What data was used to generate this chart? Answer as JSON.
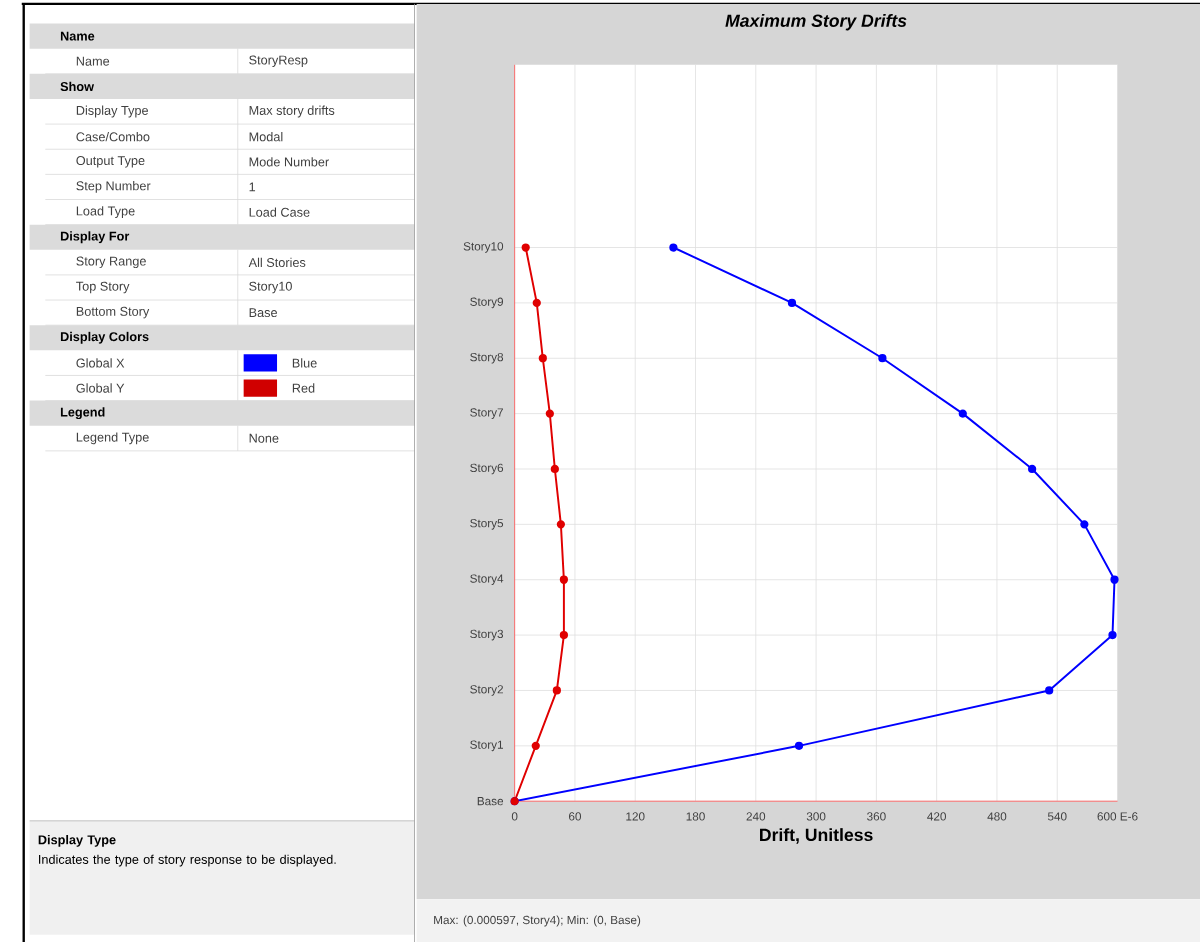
{
  "chart_data": [
    {
      "type": "other",
      "categories": [
        "Name",
        "Name",
        "Show",
        "Display Type",
        "Case/Combo",
        "Output Type",
        "Step Number",
        "Load Type",
        "Display For",
        "Story Range",
        "Top Story",
        "Bottom Story",
        "Display Colors",
        "Global X",
        "Global Y",
        "Legend",
        "Legend Type"
      ],
      "value_labels": [
        null,
        "StoryResp",
        null,
        "Max story drifts",
        "Modal",
        "Mode Number",
        "1",
        "Load Case",
        null,
        "All Stories",
        "Story10",
        "Base",
        null,
        "Blue",
        "Red",
        null,
        "None"
      ],
      "colors": [
        null,
        null,
        null,
        null,
        null,
        null,
        null,
        null,
        null,
        null,
        null,
        null,
        null,
        "#0000ff",
        "#d00000",
        null,
        null
      ],
      "annotations": [
        "Display Type",
        "Indicates the type of story response to be displayed."
      ]
    },
    {
      "type": "line",
      "orientation": "horizontal",
      "title": "Maximum Story Drifts",
      "xlabel": "Drift, Unitless",
      "categories": [
        "Story10",
        "Story9",
        "Story8",
        "Story7",
        "Story6",
        "Story5",
        "Story4",
        "Story3",
        "Story2",
        "Story1",
        "Base"
      ],
      "series": [
        {
          "color": "#0000ff",
          "values": [
            158,
            276,
            366,
            446,
            515,
            567,
            597,
            595,
            532,
            283,
            0
          ]
        },
        {
          "color": "#e00000",
          "values": [
            11,
            22,
            28,
            35,
            40,
            46,
            49,
            49,
            42,
            21,
            0
          ]
        }
      ],
      "xlim": [
        0,
        600
      ],
      "xticks": [
        0,
        60,
        120,
        180,
        240,
        300,
        360,
        420,
        480,
        540,
        {
          "value": 600,
          "label": "600 E-6"
        }
      ],
      "grid": true,
      "marker": "circle",
      "line_style": "solid",
      "annotations": [
        "Max: (0.000597, Story4); Min: (0, Base)"
      ]
    }
  ]
}
